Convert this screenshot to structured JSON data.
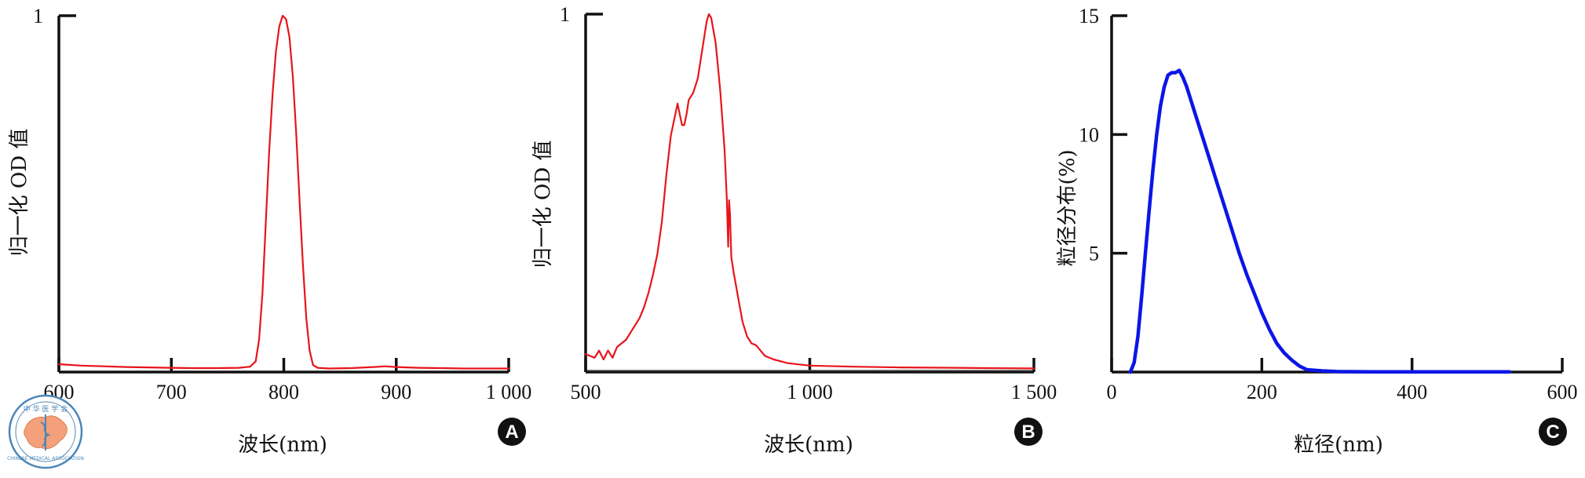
{
  "chart_data": [
    {
      "type": "line",
      "panel": "A",
      "xlabel": "波长(nm)",
      "ylabel": "归一化 OD 值",
      "xlim": [
        600,
        1000
      ],
      "ylim": [
        0,
        1
      ],
      "xticks": [
        "600",
        "700",
        "800",
        "900",
        "1 000"
      ],
      "yticks": [
        "1"
      ],
      "series": [
        {
          "color": "#e8141b",
          "x": [
            600,
            620,
            640,
            660,
            680,
            700,
            720,
            740,
            760,
            770,
            775,
            778,
            781,
            784,
            787,
            790,
            793,
            796,
            799,
            802,
            805,
            808,
            811,
            814,
            817,
            820,
            823,
            826,
            830,
            840,
            860,
            880,
            890,
            900,
            920,
            940,
            960,
            980,
            1000
          ],
          "y": [
            0.022,
            0.018,
            0.016,
            0.014,
            0.013,
            0.012,
            0.011,
            0.011,
            0.012,
            0.015,
            0.03,
            0.09,
            0.22,
            0.42,
            0.62,
            0.78,
            0.9,
            0.97,
            1.0,
            0.99,
            0.94,
            0.83,
            0.67,
            0.48,
            0.3,
            0.15,
            0.06,
            0.02,
            0.012,
            0.01,
            0.011,
            0.014,
            0.016,
            0.014,
            0.012,
            0.011,
            0.01,
            0.01,
            0.01
          ]
        }
      ]
    },
    {
      "type": "line",
      "panel": "B",
      "xlabel": "波长(nm)",
      "ylabel": "归一化 OD 值",
      "xlim": [
        500,
        1500
      ],
      "ylim": [
        0,
        1
      ],
      "xticks": [
        "500",
        "1 000",
        "1 500"
      ],
      "yticks": [
        "1"
      ],
      "series": [
        {
          "color": "#e8141b",
          "x": [
            500,
            510,
            520,
            530,
            540,
            550,
            560,
            570,
            580,
            590,
            600,
            610,
            620,
            630,
            640,
            650,
            660,
            670,
            680,
            690,
            700,
            705,
            710,
            715,
            720,
            725,
            730,
            740,
            750,
            760,
            770,
            775,
            780,
            790,
            800,
            810,
            815,
            818,
            820,
            822,
            825,
            830,
            840,
            850,
            860,
            870,
            880,
            890,
            900,
            920,
            950,
            1000,
            1100,
            1200,
            1300,
            1400,
            1500
          ],
          "y": [
            0.05,
            0.045,
            0.04,
            0.06,
            0.035,
            0.06,
            0.04,
            0.07,
            0.08,
            0.09,
            0.11,
            0.13,
            0.15,
            0.18,
            0.22,
            0.27,
            0.33,
            0.42,
            0.55,
            0.66,
            0.72,
            0.75,
            0.72,
            0.69,
            0.69,
            0.72,
            0.76,
            0.78,
            0.82,
            0.9,
            0.98,
            1.0,
            0.99,
            0.92,
            0.79,
            0.62,
            0.48,
            0.35,
            0.48,
            0.44,
            0.32,
            0.28,
            0.21,
            0.14,
            0.1,
            0.08,
            0.075,
            0.06,
            0.045,
            0.035,
            0.025,
            0.018,
            0.015,
            0.013,
            0.012,
            0.011,
            0.01
          ]
        }
      ]
    },
    {
      "type": "line",
      "panel": "C",
      "xlabel": "粒径(nm)",
      "ylabel": "粒径分布(%)",
      "xlim": [
        0,
        600
      ],
      "ylim": [
        0,
        15
      ],
      "xticks": [
        "0",
        "200",
        "400",
        "600"
      ],
      "yticks": [
        "5",
        "10",
        "15"
      ],
      "series": [
        {
          "color": "#0b16e6",
          "x": [
            25,
            30,
            35,
            40,
            45,
            50,
            55,
            60,
            65,
            70,
            75,
            80,
            85,
            90,
            95,
            100,
            110,
            120,
            130,
            140,
            150,
            160,
            170,
            180,
            190,
            200,
            210,
            220,
            230,
            240,
            250,
            260,
            280,
            300,
            350,
            400,
            450,
            500,
            530
          ],
          "y": [
            0,
            0.4,
            1.5,
            3.2,
            5.0,
            6.8,
            8.5,
            10.0,
            11.2,
            12.0,
            12.5,
            12.6,
            12.6,
            12.7,
            12.4,
            12.0,
            11.0,
            10.0,
            9.0,
            8.0,
            7.0,
            6.0,
            5.0,
            4.1,
            3.3,
            2.5,
            1.8,
            1.2,
            0.8,
            0.5,
            0.25,
            0.1,
            0.05,
            0.02,
            0.01,
            0.01,
            0.01,
            0.01,
            0.01
          ]
        }
      ]
    }
  ],
  "logo": {
    "ring_text": "CHINESE MEDICAL ASSOCIATION",
    "top_text": "中 华 医 学 会"
  },
  "colors": {
    "axis": "#111111",
    "badge": "#111111",
    "logo": "#4c86b8",
    "map": "#f4a07a"
  }
}
